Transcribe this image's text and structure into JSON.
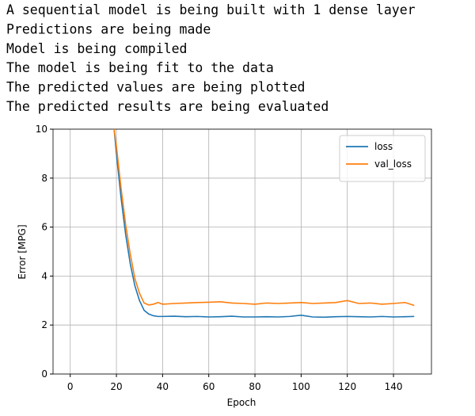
{
  "console_lines": [
    "A sequential model is being built with 1 dense layer",
    "Predictions are being made",
    "Model is being compiled",
    "The model is being fit to the data",
    "The predicted values are being plotted",
    "The predicted results are being evaluated"
  ],
  "chart_data": {
    "type": "line",
    "x_label": "Epoch",
    "y_label": "Error [MPG]",
    "x": [
      19,
      20,
      22,
      24,
      26,
      28,
      30,
      32,
      34,
      36,
      38,
      40,
      45,
      50,
      55,
      60,
      65,
      70,
      75,
      80,
      85,
      90,
      95,
      100,
      105,
      110,
      115,
      120,
      125,
      130,
      135,
      140,
      145,
      149
    ],
    "series": [
      {
        "name": "loss",
        "color": "#1f77b4",
        "values": [
          10,
          9.0,
          7.2,
          5.7,
          4.5,
          3.6,
          3.0,
          2.6,
          2.45,
          2.38,
          2.35,
          2.35,
          2.36,
          2.34,
          2.35,
          2.33,
          2.34,
          2.36,
          2.33,
          2.33,
          2.34,
          2.33,
          2.35,
          2.4,
          2.33,
          2.32,
          2.34,
          2.35,
          2.34,
          2.33,
          2.35,
          2.33,
          2.34,
          2.35
        ]
      },
      {
        "name": "val_loss",
        "color": "#ff7f0e",
        "values": [
          10,
          9.3,
          7.6,
          6.1,
          4.9,
          3.9,
          3.3,
          2.9,
          2.82,
          2.85,
          2.92,
          2.85,
          2.88,
          2.9,
          2.92,
          2.93,
          2.95,
          2.9,
          2.88,
          2.85,
          2.9,
          2.88,
          2.9,
          2.92,
          2.88,
          2.9,
          2.92,
          3.0,
          2.88,
          2.9,
          2.85,
          2.88,
          2.92,
          2.8
        ]
      }
    ],
    "xlim": [
      -7.45,
      156.45
    ],
    "xticks": [
      0,
      20,
      40,
      60,
      80,
      100,
      120,
      140
    ],
    "ylim": [
      0,
      10
    ],
    "yticks": [
      0,
      2,
      4,
      6,
      8,
      10
    ],
    "grid": true,
    "legend": "upper right"
  }
}
